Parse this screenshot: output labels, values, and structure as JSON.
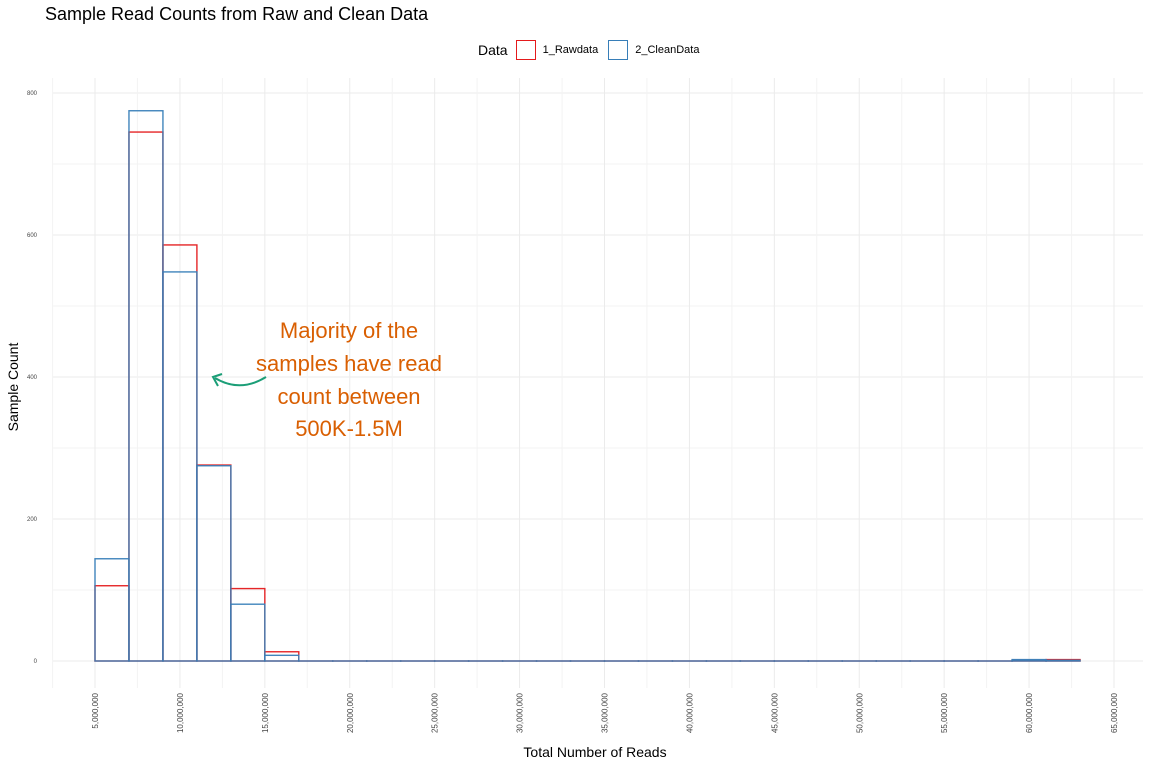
{
  "chart_data": {
    "type": "bar",
    "title": "Sample Read Counts from Raw and Clean Data",
    "xlabel": "Total Number of Reads",
    "ylabel": "Sample Count",
    "xlim": [
      2500000,
      65500000
    ],
    "ylim": [
      -18,
      800
    ],
    "x_ticks": [
      5000000,
      10000000,
      15000000,
      20000000,
      25000000,
      30000000,
      35000000,
      40000000,
      45000000,
      50000000,
      55000000,
      60000000,
      65000000
    ],
    "x_tick_labels": [
      "5,000,000",
      "10,000,000",
      "15,000,000",
      "20,000,000",
      "25,000,000",
      "30,000,000",
      "35,000,000",
      "40,000,000",
      "45,000,000",
      "50,000,000",
      "55,000,000",
      "60,000,000",
      "65,000,000"
    ],
    "y_ticks": [
      0,
      200,
      400,
      600,
      800
    ],
    "y_tick_labels": [
      "0",
      "200",
      "400",
      "600",
      "800"
    ],
    "grid": true,
    "legend": {
      "title": "Data",
      "placement": "top-center"
    },
    "bin_width": 2000000,
    "bin_starts": [
      5000000,
      7000000,
      9000000,
      11000000,
      13000000,
      15000000,
      17000000,
      19000000,
      21000000,
      23000000,
      25000000,
      27000000,
      29000000,
      31000000,
      33000000,
      35000000,
      37000000,
      39000000,
      41000000,
      43000000,
      45000000,
      47000000,
      49000000,
      51000000,
      53000000,
      55000000,
      57000000,
      59000000,
      61000000
    ],
    "series": [
      {
        "name": "1_Rawdata",
        "color": "#e41a1c",
        "values": [
          106,
          745,
          586,
          276,
          102,
          13,
          0,
          0,
          0,
          0,
          0,
          0,
          0,
          0,
          0,
          0,
          0,
          0,
          0,
          0,
          0,
          0,
          0,
          0,
          0,
          0,
          0,
          1,
          2
        ]
      },
      {
        "name": "2_CleanData",
        "color": "#377eb8",
        "values": [
          144,
          775,
          548,
          275,
          80,
          8,
          0,
          0,
          0,
          0,
          0,
          0,
          0,
          0,
          0,
          0,
          0,
          0,
          0,
          0,
          0,
          0,
          0,
          0,
          0,
          0,
          0,
          2,
          1
        ]
      }
    ],
    "annotation": {
      "lines": [
        "Majority of the",
        "samples have read",
        "count between",
        "500K-1.5M"
      ],
      "text_color": "#d95f02",
      "arrow_color": "#1b9e77"
    }
  }
}
